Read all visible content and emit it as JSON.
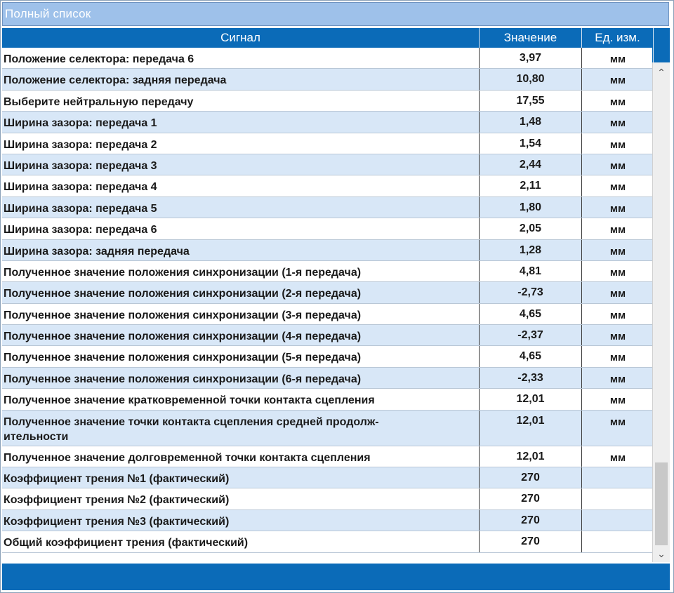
{
  "window": {
    "title": "Полный список"
  },
  "columns": {
    "signal": "Сигнал",
    "value": "Значение",
    "unit": "Ед. изм."
  },
  "rows": [
    {
      "signal": "Положение селектора: передача 6",
      "value": "3,97",
      "unit": "мм"
    },
    {
      "signal": "Положение селектора: задняя передача",
      "value": "10,80",
      "unit": "мм"
    },
    {
      "signal": "Выберите нейтральную передачу",
      "value": "17,55",
      "unit": "мм"
    },
    {
      "signal": "Ширина зазора: передача 1",
      "value": "1,48",
      "unit": "мм"
    },
    {
      "signal": "Ширина зазора: передача 2",
      "value": "1,54",
      "unit": "мм"
    },
    {
      "signal": "Ширина зазора: передача 3",
      "value": "2,44",
      "unit": "мм"
    },
    {
      "signal": "Ширина зазора: передача 4",
      "value": "2,11",
      "unit": "мм"
    },
    {
      "signal": "Ширина зазора: передача 5",
      "value": "1,80",
      "unit": "мм"
    },
    {
      "signal": "Ширина зазора: передача 6",
      "value": "2,05",
      "unit": "мм"
    },
    {
      "signal": "Ширина зазора: задняя передача",
      "value": "1,28",
      "unit": "мм"
    },
    {
      "signal": "Полученное значение положения синхронизации (1-я передача)",
      "value": "4,81",
      "unit": "мм"
    },
    {
      "signal": "Полученное значение положения синхронизации (2-я передача)",
      "value": "-2,73",
      "unit": "мм"
    },
    {
      "signal": "Полученное значение положения синхронизации (3-я передача)",
      "value": "4,65",
      "unit": "мм"
    },
    {
      "signal": "Полученное значение положения синхронизации (4-я передача)",
      "value": "-2,37",
      "unit": "мм"
    },
    {
      "signal": "Полученное значение положения синхронизации (5-я передача)",
      "value": "4,65",
      "unit": "мм"
    },
    {
      "signal": "Полученное значение положения синхронизации (6-я передача)",
      "value": "-2,33",
      "unit": "мм"
    },
    {
      "signal": "Полученное значение кратковременной точки контакта сцепления",
      "value": "12,01",
      "unit": "мм"
    },
    {
      "signal": "Полученное значение точки контакта сцепления средней продолж-\nительности",
      "value": "12,01",
      "unit": "мм"
    },
    {
      "signal": "Полученное значение долговременной точки контакта сцепления",
      "value": "12,01",
      "unit": "мм"
    },
    {
      "signal": "Коэффициент трения №1 (фактический)",
      "value": "270",
      "unit": ""
    },
    {
      "signal": "Коэффициент трения №2 (фактический)",
      "value": "270",
      "unit": ""
    },
    {
      "signal": "Коэффициент трения №3 (фактический)",
      "value": "270",
      "unit": ""
    },
    {
      "signal": "Общий коэффициент трения (фактический)",
      "value": "270",
      "unit": ""
    }
  ],
  "scrollbar": {
    "up_icon": "chevron-up-icon",
    "down_icon": "chevron-down-icon"
  }
}
